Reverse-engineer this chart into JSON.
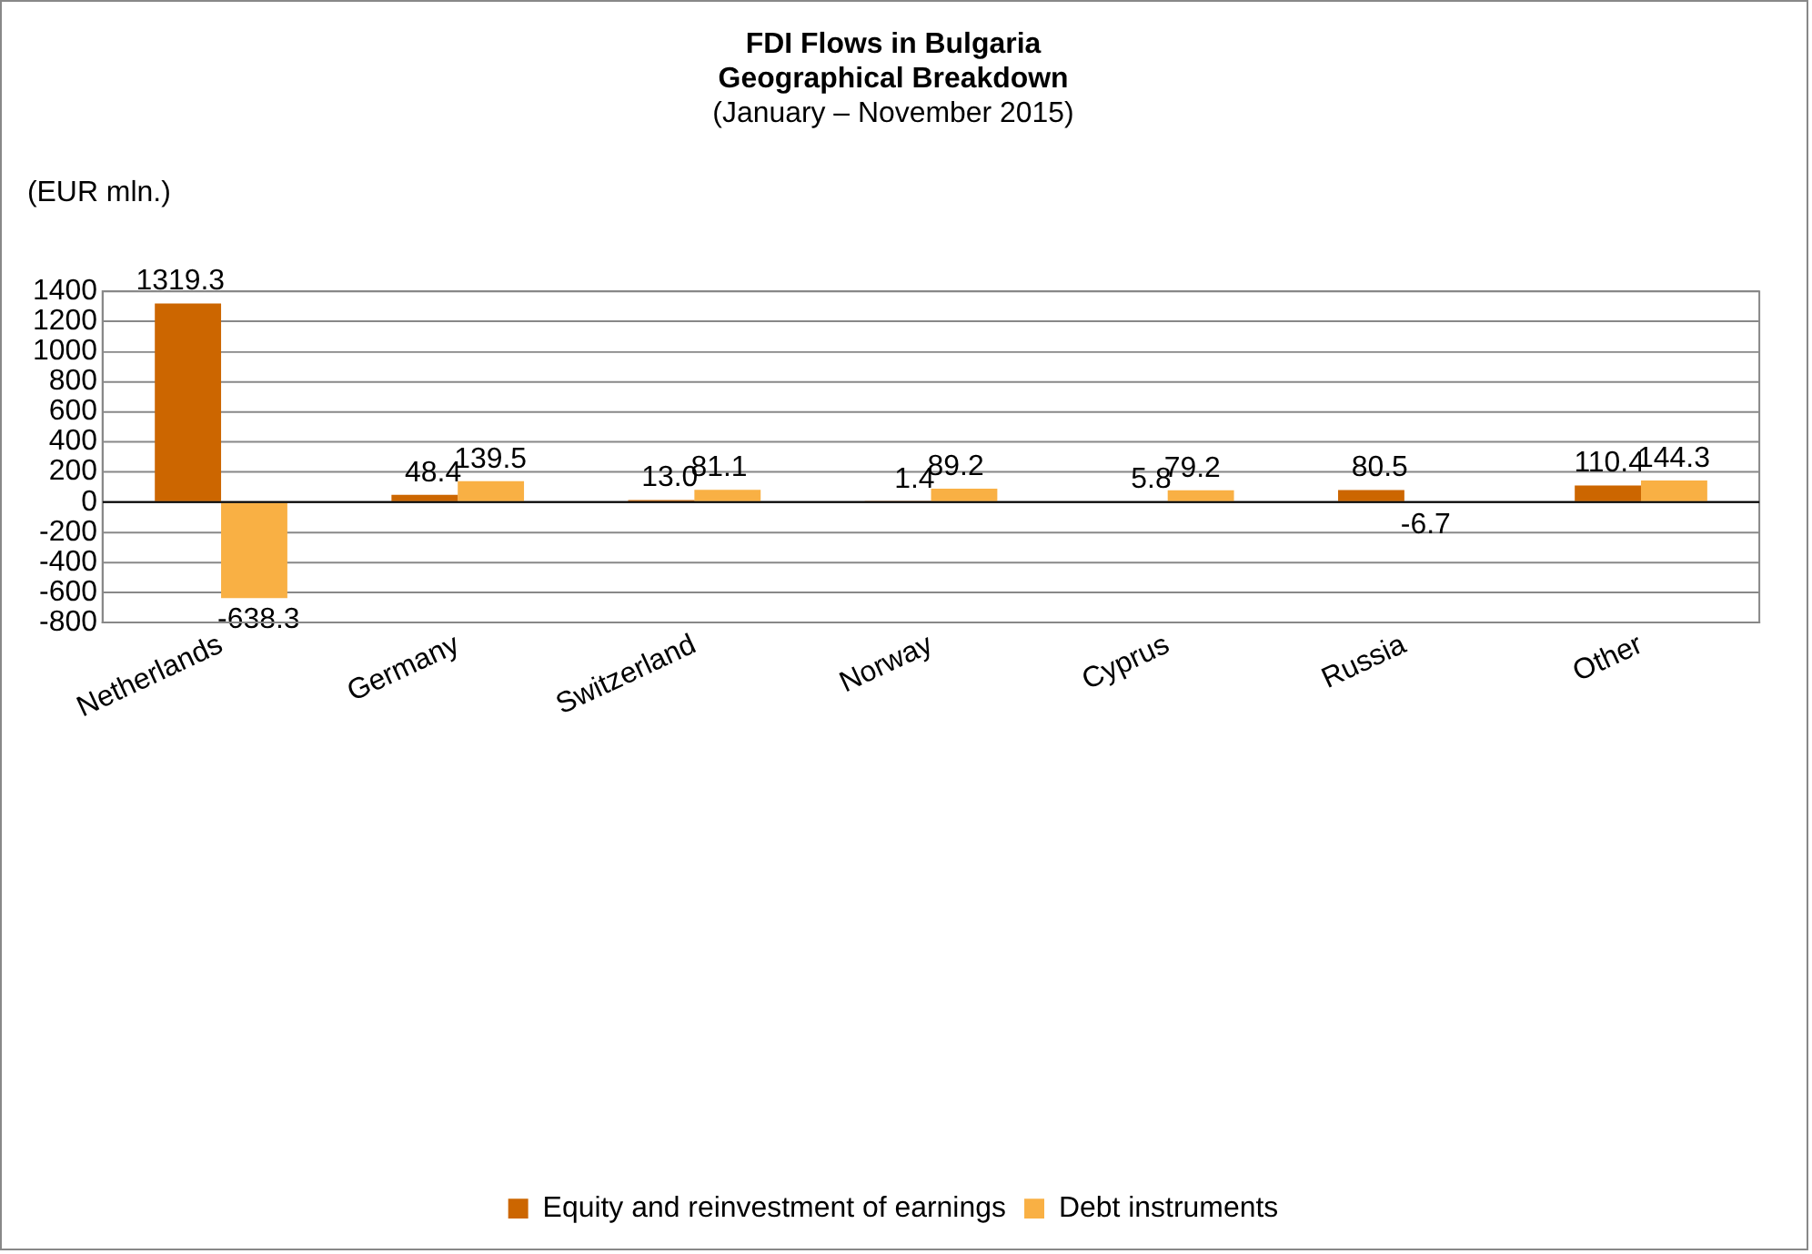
{
  "chart_data": {
    "type": "bar",
    "title": "FDI Flows in Bulgaria\nGeographical Breakdown",
    "subtitle": "(January – November 2015)",
    "ylabel": "(EUR mln.)",
    "categories": [
      "Netherlands",
      "Germany",
      "Switzerland",
      "Norway",
      "Cyprus",
      "Russia",
      "Other"
    ],
    "series": [
      {
        "name": "Equity and reinvestment of earnings",
        "color": "#cc6600",
        "values": [
          1319.3,
          48.4,
          13.0,
          1.4,
          5.8,
          80.5,
          110.4
        ],
        "value_labels": [
          "1319.3",
          "48.4",
          "13.0",
          "1.4",
          "5.8",
          "80.5",
          "110.4"
        ]
      },
      {
        "name": "Debt instruments",
        "color": "#f9b044",
        "values": [
          -638.3,
          139.5,
          81.1,
          89.2,
          79.2,
          -6.7,
          144.3
        ],
        "value_labels": [
          "-638.3",
          "139.5",
          "81.1",
          "89.2",
          "79.2",
          "-6.7",
          "144.3"
        ]
      }
    ],
    "ylim": [
      -800,
      1400
    ],
    "yticks": [
      -800,
      -600,
      -400,
      -200,
      0,
      200,
      400,
      600,
      800,
      1000,
      1200,
      1400
    ],
    "grid": "y",
    "legend": "bottom"
  }
}
